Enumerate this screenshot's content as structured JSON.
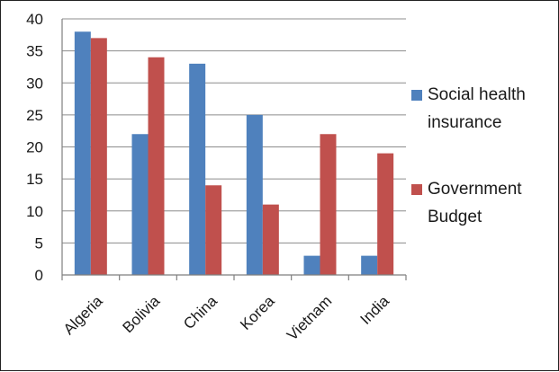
{
  "chart_data": {
    "type": "bar",
    "categories": [
      "Algeria",
      "Bolivia",
      "China",
      "Korea",
      "Vietnam",
      "India"
    ],
    "series": [
      {
        "name": "Social health insurance",
        "name_lines": [
          "Social health",
          "insurance"
        ],
        "color": "#4f81bd",
        "values": [
          38,
          22,
          33,
          25,
          3,
          3
        ]
      },
      {
        "name": "Government Budget",
        "name_lines": [
          "Government",
          "Budget"
        ],
        "color": "#c0504d",
        "values": [
          37,
          34,
          14,
          11,
          22,
          19
        ]
      }
    ],
    "yticks": [
      0,
      5,
      10,
      15,
      20,
      25,
      30,
      35,
      40
    ],
    "ylim": [
      0,
      40
    ],
    "grid": true,
    "legend": "right",
    "title": "",
    "xlabel": "",
    "ylabel": ""
  }
}
